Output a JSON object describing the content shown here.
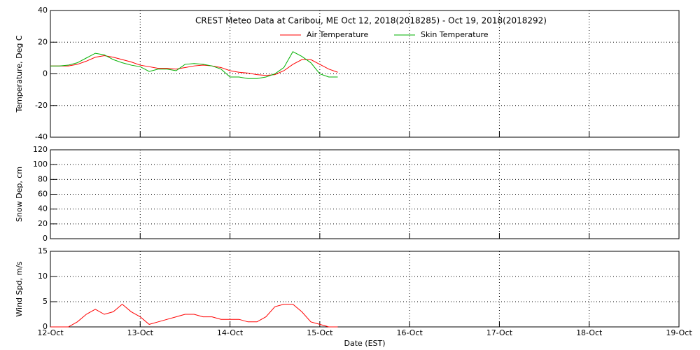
{
  "chart_data": [
    {
      "type": "line",
      "title": "CREST Meteo Data at Caribou, ME   Oct 12, 2018(2018285) - Oct 19, 2018(2018292)",
      "y_label": "Temperature, Deg C",
      "x": [
        0,
        0.1,
        0.2,
        0.3,
        0.4,
        0.5,
        0.6,
        0.7,
        0.8,
        0.9,
        1.0,
        1.1,
        1.2,
        1.3,
        1.4,
        1.5,
        1.6,
        1.7,
        1.8,
        1.9,
        2.0,
        2.1,
        2.2,
        2.3,
        2.4,
        2.5,
        2.6,
        2.7,
        2.8,
        2.9,
        3.0,
        3.1,
        3.2
      ],
      "series": [
        {
          "name": "Air Temperature",
          "color": "#ff0000",
          "values": [
            5,
            5,
            5,
            6,
            8,
            10.5,
            11.5,
            10.5,
            9,
            7.5,
            5.5,
            4.5,
            3.5,
            3.5,
            3,
            4,
            5,
            5.5,
            5,
            4,
            2,
            1,
            0.5,
            -0.5,
            -1,
            -0.5,
            2,
            6,
            9,
            9,
            6,
            3,
            1
          ]
        },
        {
          "name": "Skin Temperature",
          "color": "#00b000",
          "values": [
            5,
            5,
            5.5,
            7,
            10,
            13,
            12,
            9,
            7,
            5.5,
            4.5,
            1.5,
            3,
            3,
            2,
            6,
            6.5,
            6,
            5,
            3,
            -2,
            -2,
            -3,
            -3,
            -2,
            0,
            4,
            14,
            11,
            7,
            0,
            -2,
            -2
          ]
        }
      ],
      "xlim": [
        0,
        7
      ],
      "xticks": [
        0,
        1,
        2,
        3,
        4,
        5,
        6,
        7
      ],
      "ylim": [
        -40,
        40
      ],
      "yticks": [
        -40,
        -20,
        0,
        20,
        40
      ],
      "grid": true
    },
    {
      "type": "line",
      "y_label": "Snow Dep, cm",
      "xlim": [
        0,
        7
      ],
      "xticks": [
        0,
        1,
        2,
        3,
        4,
        5,
        6,
        7
      ],
      "ylim": [
        0,
        120
      ],
      "yticks": [
        0,
        20,
        40,
        60,
        80,
        100,
        120
      ],
      "grid": true
    },
    {
      "type": "line",
      "y_label": "Wind Spd, m/s",
      "x_label": "Date (EST)",
      "x": [
        0,
        0.1,
        0.2,
        0.3,
        0.4,
        0.5,
        0.6,
        0.7,
        0.8,
        0.9,
        1.0,
        1.1,
        1.2,
        1.3,
        1.4,
        1.5,
        1.6,
        1.7,
        1.8,
        1.9,
        2.0,
        2.1,
        2.2,
        2.3,
        2.4,
        2.5,
        2.6,
        2.7,
        2.8,
        2.9,
        3.0,
        3.1,
        3.2
      ],
      "series": [
        {
          "color": "#ff0000",
          "values": [
            0,
            0,
            0,
            1,
            2.5,
            3.5,
            2.5,
            3,
            4.5,
            3,
            2,
            0.5,
            1,
            1.5,
            2,
            2.5,
            2.5,
            2,
            2,
            1.5,
            1.5,
            1.5,
            1,
            1,
            2,
            4,
            4.5,
            4.5,
            3,
            1,
            0.5,
            0,
            0
          ]
        }
      ],
      "xlim": [
        0,
        7
      ],
      "xticks": [
        {
          "value": 0,
          "label": "12-Oct"
        },
        {
          "value": 1,
          "label": "13-Oct"
        },
        {
          "value": 2,
          "label": "14-Oct"
        },
        {
          "value": 3,
          "label": "15-Oct"
        },
        {
          "value": 4,
          "label": "16-Oct"
        },
        {
          "value": 5,
          "label": "17-Oct"
        },
        {
          "value": 6,
          "label": "18-Oct"
        },
        {
          "value": 7,
          "label": "19-Oct"
        }
      ],
      "ylim": [
        0,
        15
      ],
      "yticks": [
        0,
        5,
        10,
        15
      ],
      "grid": true
    }
  ]
}
